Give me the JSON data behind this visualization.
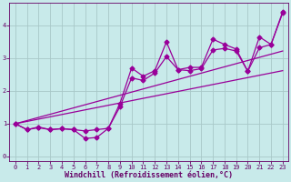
{
  "title": "",
  "xlabel": "Windchill (Refroidissement éolien,°C)",
  "ylabel": "",
  "bg_color": "#c8eaea",
  "grid_color": "#a8c8c8",
  "line_color": "#990099",
  "xlim": [
    -0.5,
    23.5
  ],
  "ylim": [
    -0.15,
    4.7
  ],
  "xticks": [
    0,
    1,
    2,
    3,
    4,
    5,
    6,
    7,
    8,
    9,
    10,
    11,
    12,
    13,
    14,
    15,
    16,
    17,
    18,
    19,
    20,
    21,
    22,
    23
  ],
  "yticks": [
    0,
    1,
    2,
    3,
    4
  ],
  "line1_x": [
    0,
    1,
    2,
    3,
    4,
    5,
    6,
    7,
    8,
    9,
    10,
    11,
    12,
    13,
    14,
    15,
    16,
    17,
    18,
    19,
    20,
    21,
    22,
    23
  ],
  "line1_y": [
    1.0,
    0.82,
    0.88,
    0.82,
    0.85,
    0.82,
    0.55,
    0.58,
    0.86,
    1.62,
    2.7,
    2.45,
    2.62,
    3.5,
    2.65,
    2.72,
    2.72,
    3.58,
    3.42,
    3.28,
    2.6,
    3.65,
    3.42,
    4.38
  ],
  "line2_x": [
    0,
    1,
    2,
    3,
    4,
    5,
    6,
    7,
    8,
    9,
    10,
    11,
    12,
    13,
    14,
    15,
    16,
    17,
    18,
    19,
    20,
    21,
    22,
    23
  ],
  "line2_y": [
    1.0,
    0.82,
    0.9,
    0.82,
    0.85,
    0.82,
    0.78,
    0.82,
    0.86,
    1.52,
    2.4,
    2.32,
    2.55,
    3.05,
    2.65,
    2.62,
    2.68,
    3.25,
    3.3,
    3.22,
    2.6,
    3.32,
    3.42,
    4.42
  ],
  "line3_x": [
    0,
    23
  ],
  "line3_y": [
    1.0,
    2.62
  ],
  "line4_x": [
    0,
    23
  ],
  "line4_y": [
    1.0,
    3.22
  ],
  "marker": "D",
  "markersize": 2.5,
  "linewidth": 0.9,
  "tick_fontsize": 5.0,
  "label_fontsize": 6.0,
  "tick_color": "#660066",
  "label_color": "#660066"
}
